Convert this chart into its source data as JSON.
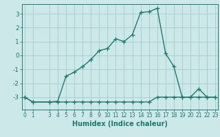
{
  "xlabel": "Humidex (Indice chaleur)",
  "background_color": "#cce8e8",
  "grid_color": "#aacfcf",
  "line_color": "#1a7a6e",
  "x_main": [
    0,
    1,
    3,
    4,
    5,
    6,
    7,
    8,
    9,
    10,
    11,
    12,
    13,
    14,
    15,
    16,
    17,
    18,
    19,
    20,
    21,
    22,
    23
  ],
  "y_main": [
    -3.0,
    -3.35,
    -3.35,
    -3.3,
    -1.5,
    -1.2,
    -0.8,
    -0.3,
    0.35,
    0.5,
    1.2,
    1.0,
    1.5,
    3.1,
    3.15,
    3.4,
    0.15,
    -0.8,
    -3.0,
    -3.0,
    -2.4,
    -3.0,
    -3.0
  ],
  "x_flat": [
    0,
    1,
    3,
    4,
    5,
    6,
    7,
    8,
    9,
    10,
    11,
    12,
    13,
    14,
    15,
    16,
    17,
    18,
    19,
    20,
    21,
    22,
    23
  ],
  "y_flat": [
    -3.0,
    -3.35,
    -3.35,
    -3.35,
    -3.35,
    -3.35,
    -3.35,
    -3.35,
    -3.35,
    -3.35,
    -3.35,
    -3.35,
    -3.35,
    -3.35,
    -3.35,
    -3.0,
    -3.0,
    -3.0,
    -3.0,
    -3.0,
    -3.0,
    -3.0,
    -3.0
  ],
  "ylim": [
    -3.9,
    3.7
  ],
  "xlim": [
    -0.3,
    23.3
  ],
  "yticks": [
    -3,
    -2,
    -1,
    0,
    1,
    2,
    3
  ],
  "xticks": [
    0,
    1,
    3,
    4,
    5,
    6,
    7,
    8,
    9,
    10,
    11,
    12,
    13,
    14,
    15,
    16,
    17,
    18,
    19,
    20,
    21,
    22,
    23
  ],
  "marker": "+",
  "markersize": 4,
  "markeredgewidth": 0.9,
  "linewidth": 1.0,
  "fontsize_xlabel": 7,
  "fontsize_xtick": 5.5,
  "fontsize_ytick": 6.5
}
